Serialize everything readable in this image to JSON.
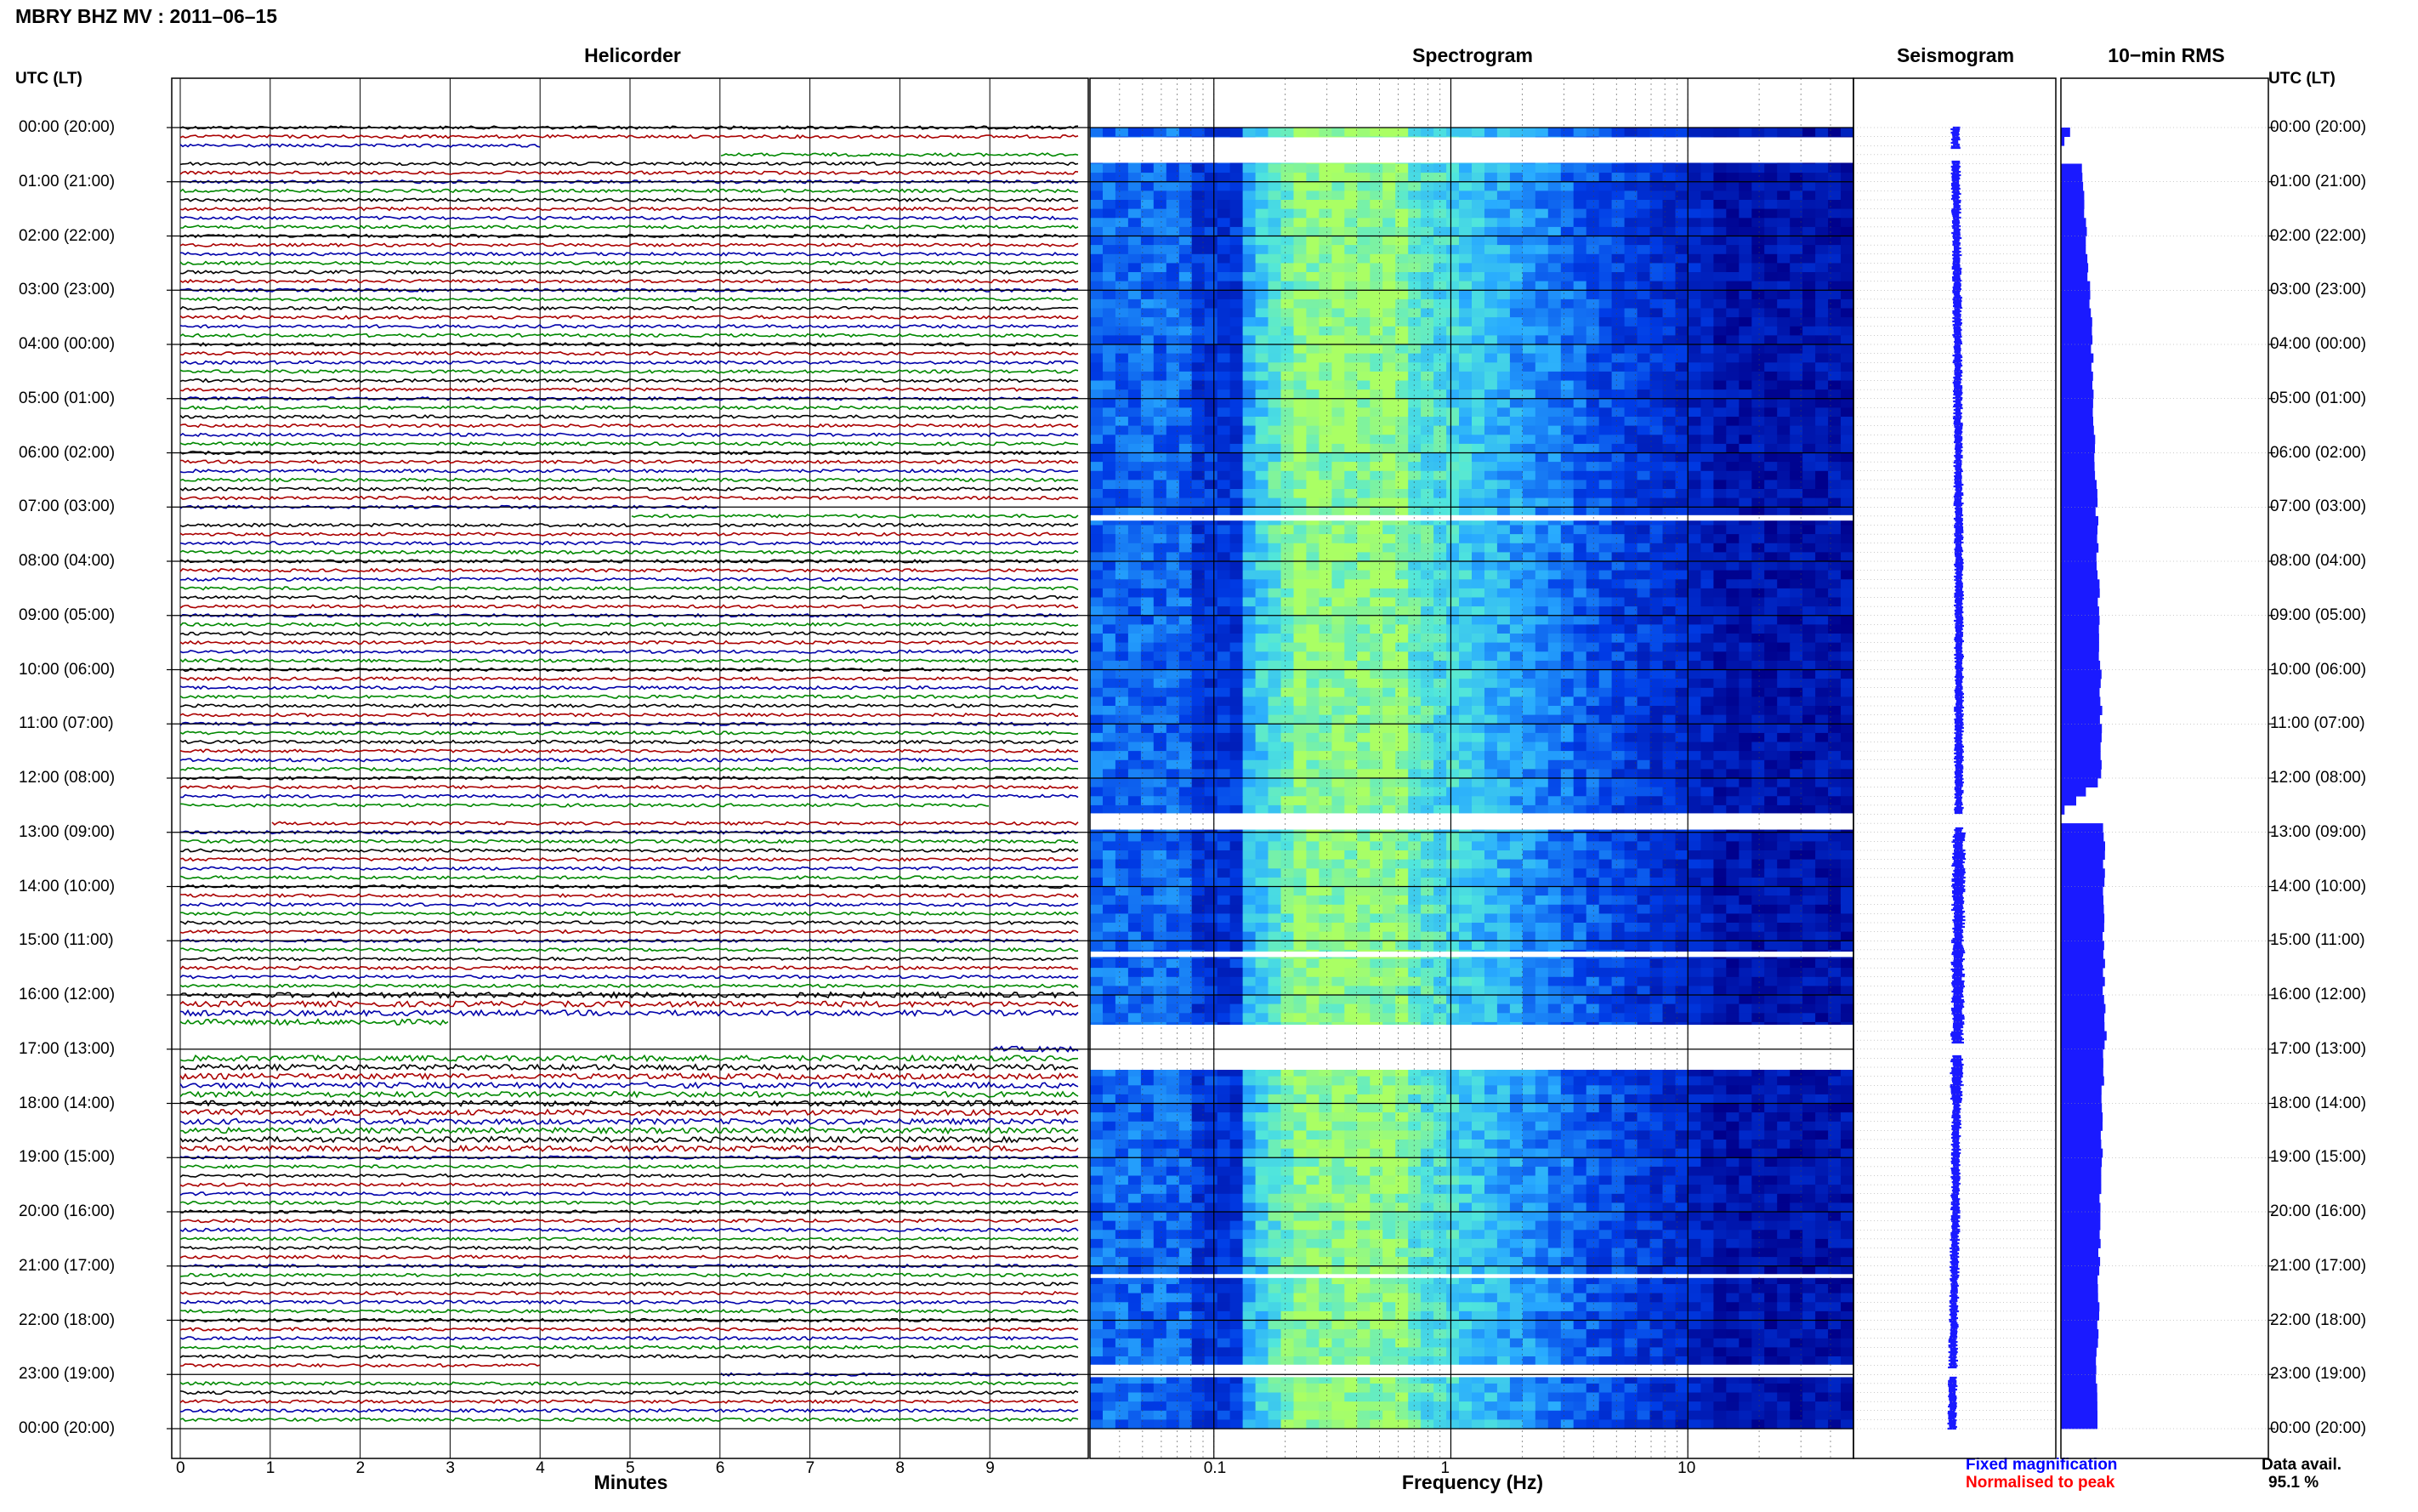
{
  "title": "MBRY BHZ MV : 2011–06–15",
  "headers": {
    "helicorder": "Helicorder",
    "spectrogram": "Spectrogram",
    "seismogram": "Seismogram",
    "rms": "10−min RMS"
  },
  "axis_labels": {
    "left_time": "UTC (LT)",
    "right_time": "UTC (LT)",
    "helicorder_x": "Minutes",
    "spectrogram_x": "Frequency (Hz)"
  },
  "legend": {
    "fixed": "Fixed magnification",
    "normalised": "Normalised to peak",
    "fixed_color": "#0000ff",
    "normalised_color": "#ff0000"
  },
  "data_avail": {
    "label": "Data avail.",
    "value": "95.1 %"
  },
  "colors": {
    "trace_cycle": [
      "#000000",
      "#aa0000",
      "#0000aa",
      "#008800"
    ],
    "seismogram": "#1a1aff",
    "rms": "#1a1aff",
    "spectrogram_low": "#00008b",
    "spectrogram_mid": "#22a8ff",
    "spectrogram_high": "#aaff66"
  },
  "chart_data": [
    {
      "type": "line",
      "name": "helicorder",
      "xlabel": "Minutes",
      "xlim": [
        0,
        10
      ],
      "xticks": [
        0,
        1,
        2,
        3,
        4,
        5,
        6,
        7,
        8,
        9
      ],
      "time_ticks_left": [
        "00:00 (20:00)",
        "01:00 (21:00)",
        "02:00 (22:00)",
        "03:00 (23:00)",
        "04:00 (00:00)",
        "05:00 (01:00)",
        "06:00 (02:00)",
        "07:00 (03:00)",
        "08:00 (04:00)",
        "09:00 (05:00)",
        "10:00 (06:00)",
        "11:00 (07:00)",
        "12:00 (08:00)",
        "13:00 (09:00)",
        "14:00 (10:00)",
        "15:00 (11:00)",
        "16:00 (12:00)",
        "17:00 (13:00)",
        "18:00 (14:00)",
        "19:00 (15:00)",
        "20:00 (16:00)",
        "21:00 (17:00)",
        "22:00 (18:00)",
        "23:00 (19:00)",
        "00:00 (20:00)"
      ],
      "lines_per_hour": 6,
      "gaps_hours": [
        [
          0.4,
          0.6
        ],
        [
          7.1,
          7.25
        ],
        [
          12.65,
          12.85
        ],
        [
          16.55,
          17.15
        ],
        [
          22.9,
          23.1
        ]
      ]
    },
    {
      "type": "heatmap",
      "name": "spectrogram",
      "xlabel": "Frequency (Hz)",
      "xscale": "log",
      "xlim": [
        0.03,
        50
      ],
      "xticks": [
        0.1,
        1,
        10
      ],
      "xtick_labels": [
        "0.1",
        "1",
        "10"
      ],
      "gaps_hours": [
        [
          0.18,
          0.65
        ],
        [
          7.15,
          7.25
        ],
        [
          12.65,
          12.95
        ],
        [
          15.2,
          15.3
        ],
        [
          16.55,
          17.38
        ],
        [
          21.15,
          21.22
        ],
        [
          22.82,
          23.05
        ]
      ]
    },
    {
      "type": "line",
      "name": "seismogram",
      "gaps_hours": [
        [
          0.4,
          0.6
        ],
        [
          12.65,
          12.9
        ],
        [
          16.9,
          17.1
        ],
        [
          22.9,
          23.05
        ]
      ]
    },
    {
      "type": "bar",
      "name": "10-min RMS",
      "orientation": "horizontal",
      "relative_values_by_hour": [
        [
          0,
          0.55
        ],
        [
          0.3,
          0.0
        ],
        [
          0.6,
          0.9
        ],
        [
          1,
          0.95
        ],
        [
          2,
          1.05
        ],
        [
          3,
          1.2
        ],
        [
          4,
          1.3
        ],
        [
          5,
          1.35
        ],
        [
          6,
          1.45
        ],
        [
          7,
          1.5
        ],
        [
          8,
          1.55
        ],
        [
          9,
          1.6
        ],
        [
          10,
          1.65
        ],
        [
          11,
          1.7
        ],
        [
          12,
          1.75
        ],
        [
          12.65,
          0.0
        ],
        [
          12.9,
          1.8
        ],
        [
          14,
          1.8
        ],
        [
          15,
          1.8
        ],
        [
          16,
          1.8
        ],
        [
          16.7,
          1.9
        ],
        [
          17,
          1.8
        ],
        [
          18,
          1.75
        ],
        [
          19,
          1.7
        ],
        [
          20,
          1.65
        ],
        [
          21,
          1.6
        ],
        [
          22,
          1.55
        ],
        [
          23,
          1.5
        ],
        [
          24,
          1.5
        ]
      ]
    }
  ]
}
